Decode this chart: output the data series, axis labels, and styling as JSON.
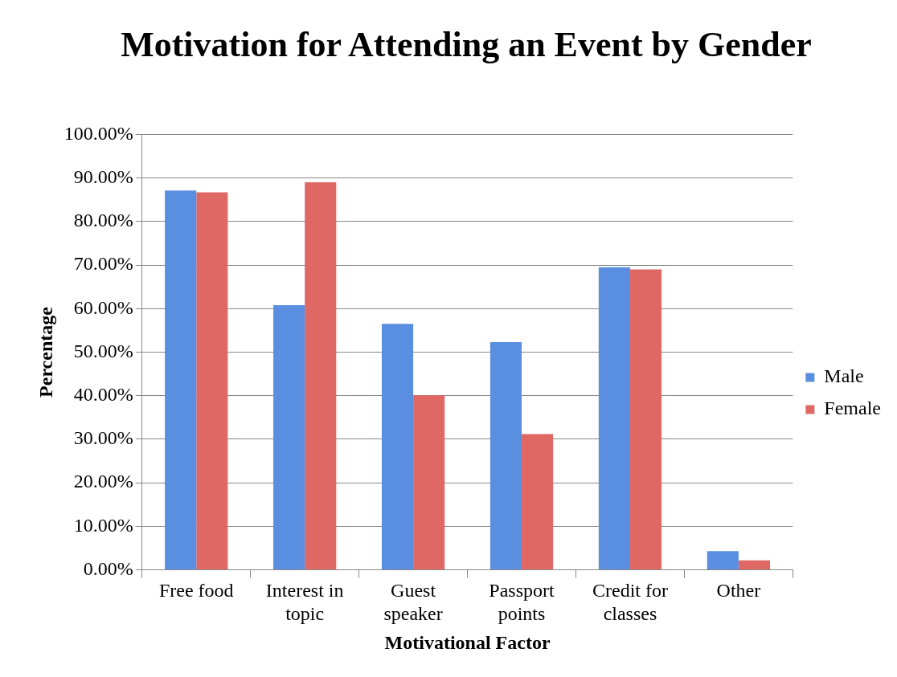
{
  "chart_data": {
    "type": "bar",
    "title": "Motivation for Attending an Event by Gender",
    "xlabel": "Motivational Factor",
    "ylabel": "Percentage",
    "categories": [
      "Free food",
      "Interest in topic",
      "Guest speaker",
      "Passport points",
      "Credit for classes",
      "Other"
    ],
    "series": [
      {
        "name": "Male",
        "color": "#5a8ee0",
        "values": [
          87.1,
          60.8,
          56.5,
          52.3,
          69.5,
          4.3
        ]
      },
      {
        "name": "Female",
        "color": "#e06864",
        "values": [
          86.7,
          89.0,
          40.1,
          31.2,
          69.0,
          2.2
        ]
      }
    ],
    "ylim": [
      0,
      100
    ],
    "yticks": [
      {
        "value": 0,
        "label": "0.00%"
      },
      {
        "value": 10,
        "label": "10.00%"
      },
      {
        "value": 20,
        "label": "20.00%"
      },
      {
        "value": 30,
        "label": "30.00%"
      },
      {
        "value": 40,
        "label": "40.00%"
      },
      {
        "value": 50,
        "label": "50.00%"
      },
      {
        "value": 60,
        "label": "60.00%"
      },
      {
        "value": 70,
        "label": "70.00%"
      },
      {
        "value": 80,
        "label": "80.00%"
      },
      {
        "value": 90,
        "label": "90.00%"
      },
      {
        "value": 100,
        "label": "100.00%"
      }
    ],
    "grid": "y",
    "legend": "right"
  }
}
